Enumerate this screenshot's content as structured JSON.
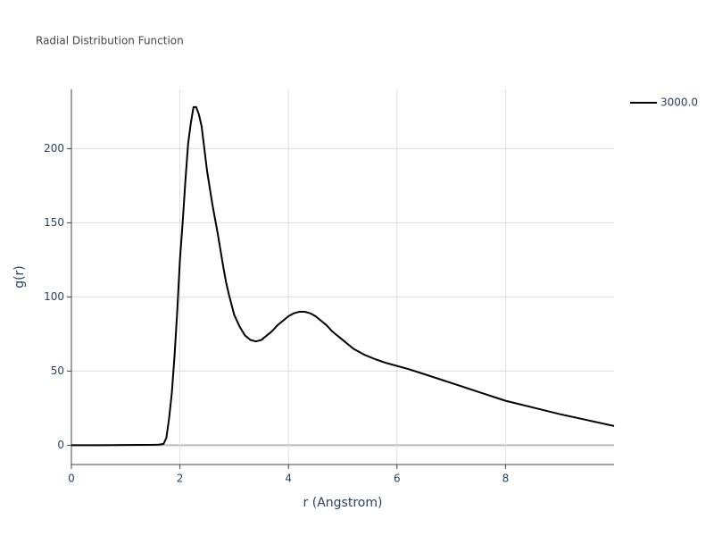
{
  "chart_data": {
    "type": "line",
    "title": "Radial Distribution Function",
    "x_label": "r (Angstrom)",
    "y_label": "g(r)",
    "x": [
      0,
      0.5,
      1.0,
      1.5,
      1.6,
      1.65,
      1.7,
      1.75,
      1.8,
      1.85,
      1.9,
      1.95,
      2.0,
      2.05,
      2.1,
      2.15,
      2.2,
      2.25,
      2.3,
      2.35,
      2.4,
      2.45,
      2.5,
      2.6,
      2.7,
      2.8,
      2.85,
      2.9,
      3.0,
      3.1,
      3.2,
      3.3,
      3.4,
      3.5,
      3.6,
      3.7,
      3.8,
      3.9,
      4.0,
      4.1,
      4.2,
      4.3,
      4.4,
      4.5,
      4.6,
      4.7,
      4.8,
      5.0,
      5.2,
      5.4,
      5.6,
      5.8,
      6.0,
      6.2,
      6.5,
      7.0,
      7.5,
      8.0,
      8.5,
      9.0,
      9.5,
      10.0
    ],
    "series": [
      {
        "name": "3000.0",
        "color": "#000000",
        "values": [
          0,
          0,
          0.2,
          0.3,
          0.4,
          0.6,
          1,
          5,
          18,
          35,
          60,
          90,
          125,
          150,
          178,
          203,
          217,
          228,
          228,
          223,
          215,
          200,
          185,
          162,
          142,
          120,
          110,
          102,
          88,
          80,
          74,
          71,
          70,
          71,
          74,
          77,
          81,
          84,
          87,
          89,
          90,
          90,
          89,
          87,
          84,
          81,
          77,
          71,
          65,
          61,
          58,
          55.5,
          53.5,
          51.5,
          48,
          42,
          36,
          30,
          25.5,
          21,
          17,
          13
        ]
      }
    ],
    "xlim": [
      0,
      10
    ],
    "ylim": [
      -13,
      240
    ],
    "xticks": [
      0,
      2,
      4,
      6,
      8
    ],
    "yticks": [
      0,
      50,
      100,
      150,
      200
    ],
    "grid": true,
    "legend": "top-right"
  }
}
